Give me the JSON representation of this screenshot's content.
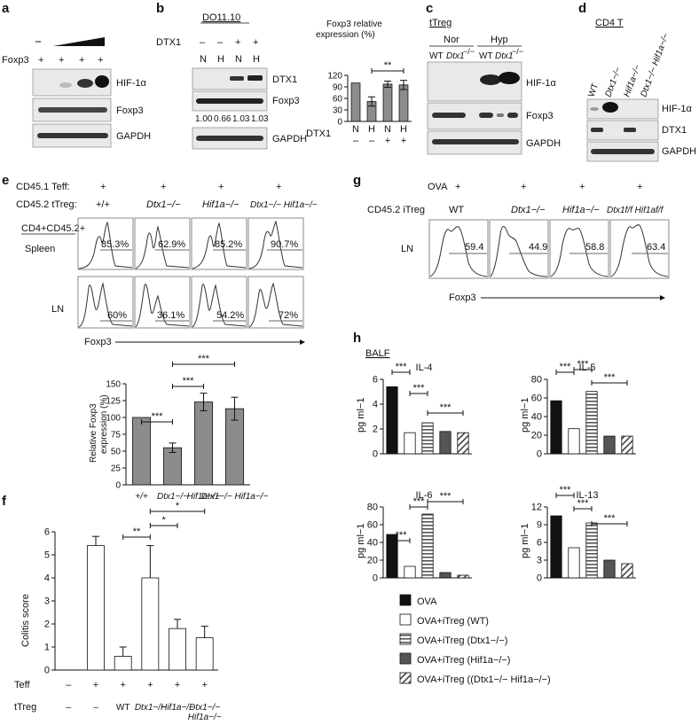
{
  "panels": {
    "a": {
      "letter": "a",
      "row_label": "Foxp3",
      "plus": [
        "+",
        "+",
        "+",
        "+"
      ],
      "blots": [
        "HIF-1α",
        "Foxp3",
        "GAPDH"
      ]
    },
    "b": {
      "letter": "b",
      "title": "DO11.10",
      "row_label": "DTX1",
      "signs": [
        "–",
        "–",
        "+",
        "+"
      ],
      "lanes": [
        "N",
        "H",
        "N",
        "H"
      ],
      "quant": [
        "1.00",
        "0.66",
        "1.03",
        "1.03"
      ],
      "blots": [
        "DTX1",
        "Foxp3",
        "GAPDH"
      ],
      "chart_title": "Foxp3 relative expression (%)",
      "sig": "**"
    },
    "c": {
      "letter": "c",
      "title": "tTreg",
      "groups": [
        "Nor",
        "Hyp"
      ],
      "lanes": [
        "WT",
        "Dtx1",
        "WT",
        "Dtx1"
      ],
      "ko": "−/−",
      "blots": [
        "HIF-1α",
        "Foxp3",
        "GAPDH"
      ]
    },
    "d": {
      "letter": "d",
      "title": "CD4 T",
      "lanes": [
        "WT",
        "Dtx1−/−",
        "Hif1a−/−",
        "Dtx1−/− Hif1a−/−"
      ],
      "blots": [
        "HIF-1α",
        "DTX1",
        "GAPDH"
      ]
    },
    "e": {
      "letter": "e",
      "row1_label": "CD45.1 Teff:",
      "row2_label": "CD45.2 tTreg:",
      "genotypes": [
        "+/+",
        "Dtx1−/−",
        "Hif1a−/−",
        "Dtx1−/− Hif1a−/−"
      ],
      "gate_label": "CD4+CD45.2+",
      "tissues": [
        "Spleen",
        "LN"
      ],
      "spleen_pct": [
        "85.3%",
        "62.9%",
        "85.2%",
        "90.7%"
      ],
      "ln_pct": [
        "60%",
        "36.1%",
        "54.2%",
        "72%"
      ],
      "axis": "Foxp3",
      "chart_ylabel": "Relative Foxp3 expression (%)",
      "sigs": [
        "***",
        "***",
        "***"
      ]
    },
    "f": {
      "letter": "f",
      "ylabel": "Colitis score",
      "teff_label": "Teff",
      "treg_label": "tTreg",
      "teff": [
        "–",
        "+",
        "+",
        "+",
        "+",
        "+"
      ],
      "treg": [
        "–",
        "–",
        "WT",
        "Dtx1−/−",
        "Hif1a−/−",
        "Dtx1−/− Hif1a−/−"
      ],
      "sigs": [
        "**",
        "*",
        "*"
      ]
    },
    "g": {
      "letter": "g",
      "row1_label": "OVA",
      "row2_label": "CD45.2 iTreg",
      "genotypes": [
        "WT",
        "Dtx1−/−",
        "Hif1a−/−",
        "Dtx1f/f Hif1af/f"
      ],
      "tissue": "LN",
      "pct": [
        "59.4",
        "44.9",
        "58.8",
        "63.4"
      ],
      "axis": "Foxp3"
    },
    "h": {
      "letter": "h",
      "title": "BALF",
      "ylabel": "pg ml−1",
      "legend": [
        "OVA",
        "OVA+iTreg (WT)",
        "OVA+iTreg (Dtx1−/−)",
        "OVA+iTreg (Hif1a−/−)",
        "OVA+iTreg ((Dtx1−/− Hif1a−/−)"
      ]
    }
  },
  "chart_data": [
    {
      "panel": "b",
      "type": "bar",
      "title": "Foxp3 relative expression (%)",
      "categories": [
        "N",
        "H",
        "N",
        "H"
      ],
      "dtx1": [
        "–",
        "–",
        "+",
        "+"
      ],
      "values": [
        100,
        52,
        97,
        95
      ],
      "errors": [
        0,
        12,
        8,
        12
      ],
      "ylim": [
        0,
        120
      ],
      "yticks": [
        0,
        30,
        60,
        90,
        120
      ],
      "ylabel": ""
    },
    {
      "panel": "e",
      "type": "bar",
      "categories": [
        "+/+",
        "Dtx1−/−",
        "Hif1a−/−",
        "Dtx1−/− Hif1a−/−"
      ],
      "values": [
        100,
        55,
        123,
        113
      ],
      "errors": [
        0,
        7,
        13,
        17
      ],
      "ylim": [
        0,
        150
      ],
      "yticks": [
        0,
        25,
        50,
        75,
        100,
        125,
        150
      ],
      "ylabel": "Relative Foxp3 expression (%)"
    },
    {
      "panel": "f",
      "type": "bar",
      "categories": [
        "– / –",
        "+ / –",
        "+ / WT",
        "+ / Dtx1−/−",
        "+ / Hif1a−/−",
        "+ / Dtx1−/− Hif1a−/−"
      ],
      "values": [
        0,
        5.4,
        0.6,
        4.0,
        1.8,
        1.4
      ],
      "errors": [
        0,
        0.4,
        0.4,
        1.4,
        0.4,
        0.5
      ],
      "ylim": [
        0,
        6
      ],
      "yticks": [
        0,
        1,
        2,
        3,
        4,
        5,
        6
      ],
      "ylabel": "Colitis score"
    },
    {
      "panel": "h",
      "type": "bar",
      "title": "IL-4",
      "categories": [
        "OVA",
        "OVA+iTreg (WT)",
        "OVA+iTreg (Dtx1−/−)",
        "OVA+iTreg (Hif1a−/−)",
        "OVA+iTreg ((Dtx1−/− Hif1a−/−)"
      ],
      "values": [
        5.4,
        1.7,
        2.5,
        1.8,
        1.7
      ],
      "ylim": [
        0,
        6
      ],
      "yticks": [
        0,
        2,
        4,
        6
      ],
      "ylabel": "pg ml−1"
    },
    {
      "panel": "h",
      "type": "bar",
      "title": "IL-5",
      "categories": [
        "OVA",
        "OVA+iTreg (WT)",
        "OVA+iTreg (Dtx1−/−)",
        "OVA+iTreg (Hif1a−/−)",
        "OVA+iTreg ((Dtx1−/− Hif1a−/−)"
      ],
      "values": [
        57,
        27,
        67,
        19,
        19
      ],
      "ylim": [
        0,
        80
      ],
      "yticks": [
        0,
        20,
        40,
        60,
        80
      ],
      "ylabel": "pg ml−1"
    },
    {
      "panel": "h",
      "type": "bar",
      "title": "IL-6",
      "categories": [
        "OVA",
        "OVA+iTreg (WT)",
        "OVA+iTreg (Dtx1−/−)",
        "OVA+iTreg (Hif1a−/−)",
        "OVA+iTreg ((Dtx1−/− Hif1a−/−)"
      ],
      "values": [
        49,
        13,
        72,
        6,
        3
      ],
      "ylim": [
        0,
        80
      ],
      "yticks": [
        0,
        20,
        40,
        60,
        80
      ],
      "ylabel": "pg ml−1"
    },
    {
      "panel": "h",
      "type": "bar",
      "title": "IL-13",
      "categories": [
        "OVA",
        "OVA+iTreg (WT)",
        "OVA+iTreg (Dtx1−/−)",
        "OVA+iTreg (Hif1a−/−)",
        "OVA+iTreg ((Dtx1−/− Hif1a−/−)"
      ],
      "values": [
        10.5,
        5.1,
        9.3,
        3.0,
        2.4
      ],
      "ylim": [
        0,
        12
      ],
      "yticks": [
        0,
        3,
        6,
        9,
        12
      ],
      "ylabel": "pg ml−1"
    }
  ]
}
